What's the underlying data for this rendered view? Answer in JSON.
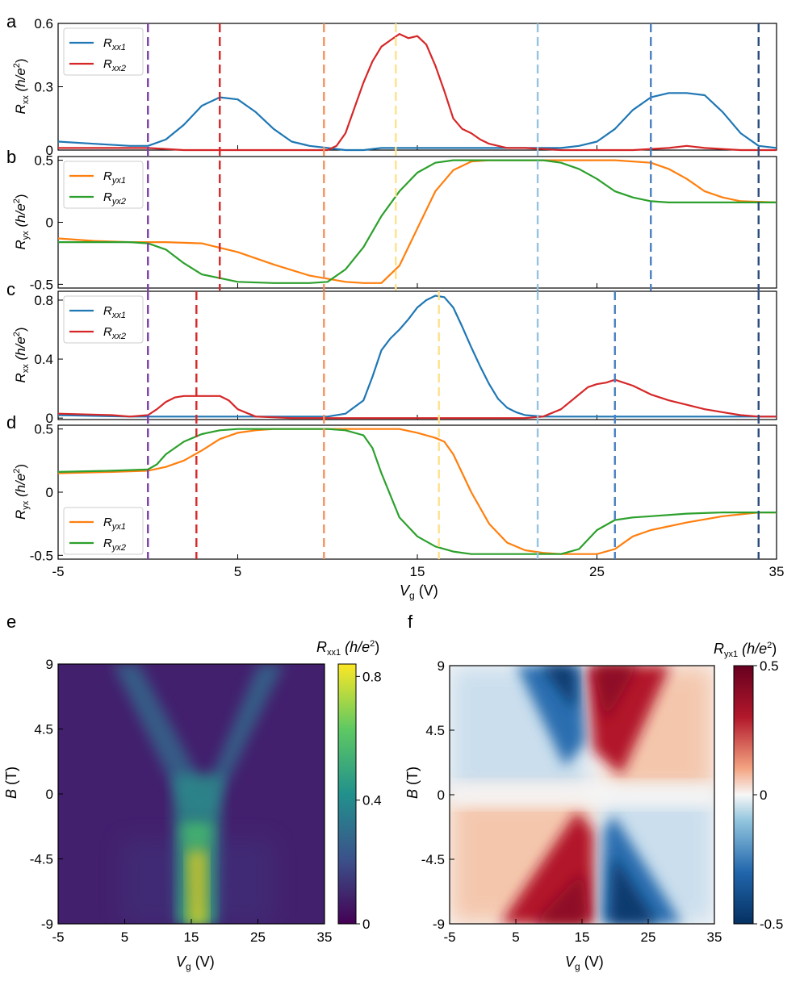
{
  "colors": {
    "blue": "#1f77b4",
    "red": "#d62728",
    "orange": "#ff7f0e",
    "green": "#2ca02c",
    "vline_purple": "#7b3fa8",
    "vline_red": "#d62728",
    "vline_salmon": "#f4915e",
    "vline_yellow": "#fde28c",
    "vline_lightblue": "#94c4e0",
    "vline_blue": "#4a7fc0",
    "vline_navy": "#2b4a7e"
  },
  "labels": {
    "xlabel_main": "V",
    "xlabel_sub": "g",
    "xlabel_unit": " (V)",
    "ylabel_rxx_main": "R",
    "ylabel_rxx_sub": "xx",
    "ylabel_ryx_sub": "yx",
    "ylabel_unit": " (h/e",
    "ylabel_B_main": "B",
    "ylabel_B_unit": " (T)",
    "cbar_e_main": "R",
    "cbar_e_sub": "xx1",
    "cbar_e_unit": " (h/e",
    "cbar_f_main": "R",
    "cbar_f_sub": "yx1",
    "cbar_f_unit": " (h/e",
    "sup2": "2",
    "close": ")"
  },
  "chart_data": [
    {
      "panel": "a",
      "type": "line",
      "xlim": [
        -5,
        35
      ],
      "ylim": [
        0,
        0.6
      ],
      "xticks": [
        -5,
        5,
        15,
        25,
        35
      ],
      "yticks": [
        "0",
        "0.3",
        "0.6"
      ],
      "ylabel": "Rxx (h/e2)",
      "legend": {
        "position": "top-left",
        "entries": [
          {
            "name": "Rxx1",
            "main": "R",
            "sub": "xx1",
            "color": "#1f77b4"
          },
          {
            "name": "Rxx2",
            "main": "R",
            "sub": "xx2",
            "color": "#d62728"
          }
        ]
      },
      "series": [
        {
          "name": "Rxx1",
          "color": "#1f77b4",
          "x": [
            -5,
            -3,
            -1,
            0,
            1,
            2,
            3,
            4,
            5,
            6,
            7,
            8,
            9,
            10,
            11,
            12,
            13,
            14,
            15,
            16,
            17,
            18,
            19,
            20,
            21,
            22,
            23,
            24,
            25,
            26,
            27,
            28,
            29,
            30,
            31,
            32,
            33,
            34,
            35
          ],
          "y": [
            0.04,
            0.03,
            0.02,
            0.02,
            0.05,
            0.12,
            0.21,
            0.25,
            0.24,
            0.18,
            0.1,
            0.04,
            0.02,
            0.01,
            0.0,
            0.0,
            0.01,
            0.01,
            0.01,
            0.01,
            0.01,
            0.01,
            0.01,
            0.01,
            0.01,
            0.01,
            0.01,
            0.02,
            0.04,
            0.1,
            0.19,
            0.25,
            0.27,
            0.27,
            0.26,
            0.18,
            0.08,
            0.02,
            0.01
          ]
        },
        {
          "name": "Rxx2",
          "color": "#d62728",
          "x": [
            -5,
            -3,
            -1,
            0,
            2,
            5,
            8,
            10,
            10.5,
            11,
            11.5,
            12,
            12.5,
            13,
            13.5,
            14,
            14.5,
            15,
            15.5,
            16,
            16.5,
            17,
            17.5,
            18,
            18.5,
            19,
            20,
            21,
            23,
            25,
            27,
            29,
            30,
            31,
            33,
            35
          ],
          "y": [
            0.01,
            0.01,
            0.01,
            0.01,
            0.0,
            0.0,
            0.0,
            0.0,
            0.02,
            0.08,
            0.2,
            0.32,
            0.42,
            0.49,
            0.52,
            0.55,
            0.53,
            0.54,
            0.5,
            0.4,
            0.28,
            0.15,
            0.1,
            0.08,
            0.05,
            0.03,
            0.01,
            0.01,
            0.0,
            0.0,
            0.0,
            0.01,
            0.02,
            0.01,
            0.0,
            0.0
          ]
        }
      ]
    },
    {
      "panel": "b",
      "type": "line",
      "xlim": [
        -5,
        35
      ],
      "ylim": [
        -0.53,
        0.53
      ],
      "xticks": [
        -5,
        5,
        15,
        25,
        35
      ],
      "yticks": [
        "-0.5",
        "0",
        "0.5"
      ],
      "ylabel": "Ryx (h/e2)",
      "legend": {
        "position": "top-left",
        "entries": [
          {
            "name": "Ryx1",
            "main": "R",
            "sub": "yx1",
            "color": "#ff7f0e"
          },
          {
            "name": "Ryx2",
            "main": "R",
            "sub": "yx2",
            "color": "#2ca02c"
          }
        ]
      },
      "series": [
        {
          "name": "Ryx1",
          "color": "#ff7f0e",
          "x": [
            -5,
            -3,
            -1,
            1,
            3,
            5,
            7,
            9,
            11,
            12,
            13,
            13.5,
            14,
            15,
            16,
            17,
            18,
            19,
            20,
            22,
            24,
            26,
            28,
            29,
            30,
            31,
            32,
            33,
            35
          ],
          "y": [
            -0.13,
            -0.15,
            -0.16,
            -0.16,
            -0.17,
            -0.24,
            -0.34,
            -0.43,
            -0.48,
            -0.49,
            -0.49,
            -0.42,
            -0.35,
            -0.05,
            0.25,
            0.42,
            0.49,
            0.5,
            0.5,
            0.5,
            0.5,
            0.5,
            0.48,
            0.43,
            0.35,
            0.25,
            0.2,
            0.17,
            0.16
          ]
        },
        {
          "name": "Ryx2",
          "color": "#2ca02c",
          "x": [
            -5,
            -3,
            -1,
            0,
            1,
            2,
            3,
            5,
            7,
            9,
            10,
            11,
            12,
            13,
            14,
            15,
            16,
            17,
            18,
            20,
            22,
            23,
            24,
            25,
            26,
            27,
            28,
            29,
            31,
            33,
            35
          ],
          "y": [
            -0.16,
            -0.16,
            -0.16,
            -0.17,
            -0.22,
            -0.33,
            -0.42,
            -0.48,
            -0.49,
            -0.49,
            -0.48,
            -0.38,
            -0.2,
            0.05,
            0.25,
            0.4,
            0.48,
            0.5,
            0.5,
            0.5,
            0.5,
            0.48,
            0.43,
            0.35,
            0.25,
            0.2,
            0.17,
            0.16,
            0.16,
            0.16,
            0.16
          ]
        }
      ]
    },
    {
      "panel": "c",
      "type": "line",
      "xlim": [
        -5,
        35
      ],
      "ylim": [
        -0.01,
        0.86
      ],
      "xticks": [
        -5,
        5,
        15,
        25,
        35
      ],
      "yticks": [
        "0",
        "0.4",
        "0.8"
      ],
      "ylabel": "Rxx (h/e2)",
      "legend": {
        "position": "top-left",
        "entries": [
          {
            "name": "Rxx1",
            "main": "R",
            "sub": "xx1",
            "color": "#1f77b4"
          },
          {
            "name": "Rxx2",
            "main": "R",
            "sub": "xx2",
            "color": "#d62728"
          }
        ]
      },
      "series": [
        {
          "name": "Rxx1",
          "color": "#1f77b4",
          "x": [
            -5,
            -1,
            3,
            7,
            10,
            11,
            12,
            12.5,
            13,
            13.5,
            14,
            14.5,
            15,
            15.5,
            16,
            16.5,
            17,
            17.5,
            18,
            18.5,
            19,
            19.5,
            20,
            20.5,
            21,
            22,
            24,
            28,
            35
          ],
          "y": [
            0.02,
            0.01,
            0.01,
            0.01,
            0.01,
            0.03,
            0.12,
            0.28,
            0.46,
            0.54,
            0.6,
            0.67,
            0.75,
            0.8,
            0.83,
            0.82,
            0.75,
            0.62,
            0.48,
            0.35,
            0.23,
            0.13,
            0.07,
            0.04,
            0.02,
            0.01,
            0.01,
            0.01,
            0.01
          ]
        },
        {
          "name": "Rxx2",
          "color": "#d62728",
          "x": [
            -5,
            -2,
            -1,
            0,
            0.5,
            1,
            1.5,
            2,
            3,
            4,
            4.5,
            5,
            6,
            8,
            10,
            15,
            21,
            22,
            23,
            24,
            24.5,
            25,
            25.5,
            26,
            26.5,
            27,
            28,
            29,
            30,
            31,
            32,
            33,
            34,
            35
          ],
          "y": [
            0.03,
            0.02,
            0.01,
            0.02,
            0.06,
            0.11,
            0.14,
            0.15,
            0.15,
            0.15,
            0.12,
            0.06,
            0.01,
            0.0,
            0.0,
            0.0,
            0.0,
            0.01,
            0.06,
            0.16,
            0.21,
            0.23,
            0.24,
            0.26,
            0.24,
            0.22,
            0.16,
            0.12,
            0.09,
            0.06,
            0.04,
            0.02,
            0.01,
            0.01
          ]
        }
      ]
    },
    {
      "panel": "d",
      "type": "line",
      "xlim": [
        -5,
        35
      ],
      "ylim": [
        -0.53,
        0.53
      ],
      "xticks": [
        -5,
        5,
        15,
        25,
        35
      ],
      "yticks": [
        "-0.5",
        "0",
        "0.5"
      ],
      "ylabel": "Ryx (h/e2)",
      "legend": {
        "position": "bottom-left",
        "entries": [
          {
            "name": "Ryx1",
            "main": "R",
            "sub": "yx1",
            "color": "#ff7f0e"
          },
          {
            "name": "Ryx2",
            "main": "R",
            "sub": "yx2",
            "color": "#2ca02c"
          }
        ]
      },
      "series": [
        {
          "name": "Ryx1",
          "color": "#ff7f0e",
          "x": [
            -5,
            -2,
            0,
            1,
            2,
            3,
            4,
            5,
            6,
            7,
            8,
            10,
            12,
            14,
            15,
            16,
            16.5,
            17,
            18,
            19,
            20,
            21,
            22,
            23,
            25,
            26,
            27,
            28,
            30,
            32,
            34,
            35
          ],
          "y": [
            0.15,
            0.16,
            0.17,
            0.2,
            0.25,
            0.33,
            0.42,
            0.47,
            0.49,
            0.5,
            0.5,
            0.5,
            0.5,
            0.5,
            0.47,
            0.43,
            0.4,
            0.3,
            0.0,
            -0.25,
            -0.4,
            -0.46,
            -0.48,
            -0.49,
            -0.49,
            -0.45,
            -0.35,
            -0.3,
            -0.24,
            -0.19,
            -0.16,
            -0.16
          ]
        },
        {
          "name": "Ryx2",
          "color": "#2ca02c",
          "x": [
            -5,
            -2,
            0,
            0.5,
            1,
            2,
            3,
            4,
            5,
            7,
            9,
            10,
            11,
            12,
            12.5,
            13,
            14,
            15,
            16,
            17,
            18,
            20,
            22,
            23,
            24,
            25,
            26,
            27,
            28,
            30,
            32,
            35
          ],
          "y": [
            0.16,
            0.17,
            0.18,
            0.22,
            0.3,
            0.4,
            0.46,
            0.49,
            0.5,
            0.5,
            0.5,
            0.5,
            0.49,
            0.45,
            0.35,
            0.15,
            -0.2,
            -0.35,
            -0.43,
            -0.47,
            -0.49,
            -0.49,
            -0.49,
            -0.49,
            -0.45,
            -0.3,
            -0.22,
            -0.2,
            -0.19,
            -0.17,
            -0.16,
            -0.16
          ]
        }
      ]
    },
    {
      "panel": "e",
      "type": "heatmap",
      "quantity": "Rxx1",
      "colormap": "viridis",
      "xlim": [
        -5,
        35
      ],
      "ylim": [
        -9,
        9
      ],
      "xticks": [
        "-5",
        "5",
        "15",
        "25",
        "35"
      ],
      "yticks": [
        "9",
        "4.5",
        "0",
        "-4.5",
        "-9"
      ],
      "colorbar": {
        "range": [
          0,
          0.84
        ],
        "ticks": [
          "0.8",
          "0.4",
          "0"
        ]
      },
      "features": "Dirac peak near Vg=16 V at B=0 splitting into V-shaped branches toward |B|=9 T (strongest at negative B, peak ~0.8)"
    },
    {
      "panel": "f",
      "type": "heatmap",
      "quantity": "Ryx1",
      "colormap": "RdBu_r",
      "xlim": [
        -5,
        35
      ],
      "ylim": [
        -9,
        9
      ],
      "xticks": [
        "-5",
        "5",
        "15",
        "25",
        "35"
      ],
      "yticks": [
        "9",
        "4.5",
        "0",
        "-4.5",
        "-9"
      ],
      "colorbar": {
        "range": [
          -0.5,
          0.5
        ],
        "ticks": [
          "0.5",
          "0",
          "-0.5"
        ]
      },
      "features": "Antisymmetric in B; sign change across Vg≈17 V; saturates at ±0.5 h/e2 at high |B|"
    }
  ],
  "vlines": {
    "top": [
      {
        "x": 0,
        "color": "#7b3fa8"
      },
      {
        "x": 4,
        "color": "#d62728"
      },
      {
        "x": 9.8,
        "color": "#f4915e"
      },
      {
        "x": 13.8,
        "color": "#fde28c"
      },
      {
        "x": 21.7,
        "color": "#94c4e0"
      },
      {
        "x": 28,
        "color": "#4a7fc0"
      },
      {
        "x": 34,
        "color": "#2b4a7e"
      }
    ],
    "bottom": [
      {
        "x": 0,
        "color": "#7b3fa8"
      },
      {
        "x": 2.7,
        "color": "#d62728"
      },
      {
        "x": 9.8,
        "color": "#f4915e"
      },
      {
        "x": 16.2,
        "color": "#fde28c"
      },
      {
        "x": 21.7,
        "color": "#94c4e0"
      },
      {
        "x": 26,
        "color": "#4a7fc0"
      },
      {
        "x": 34,
        "color": "#2b4a7e"
      }
    ]
  }
}
